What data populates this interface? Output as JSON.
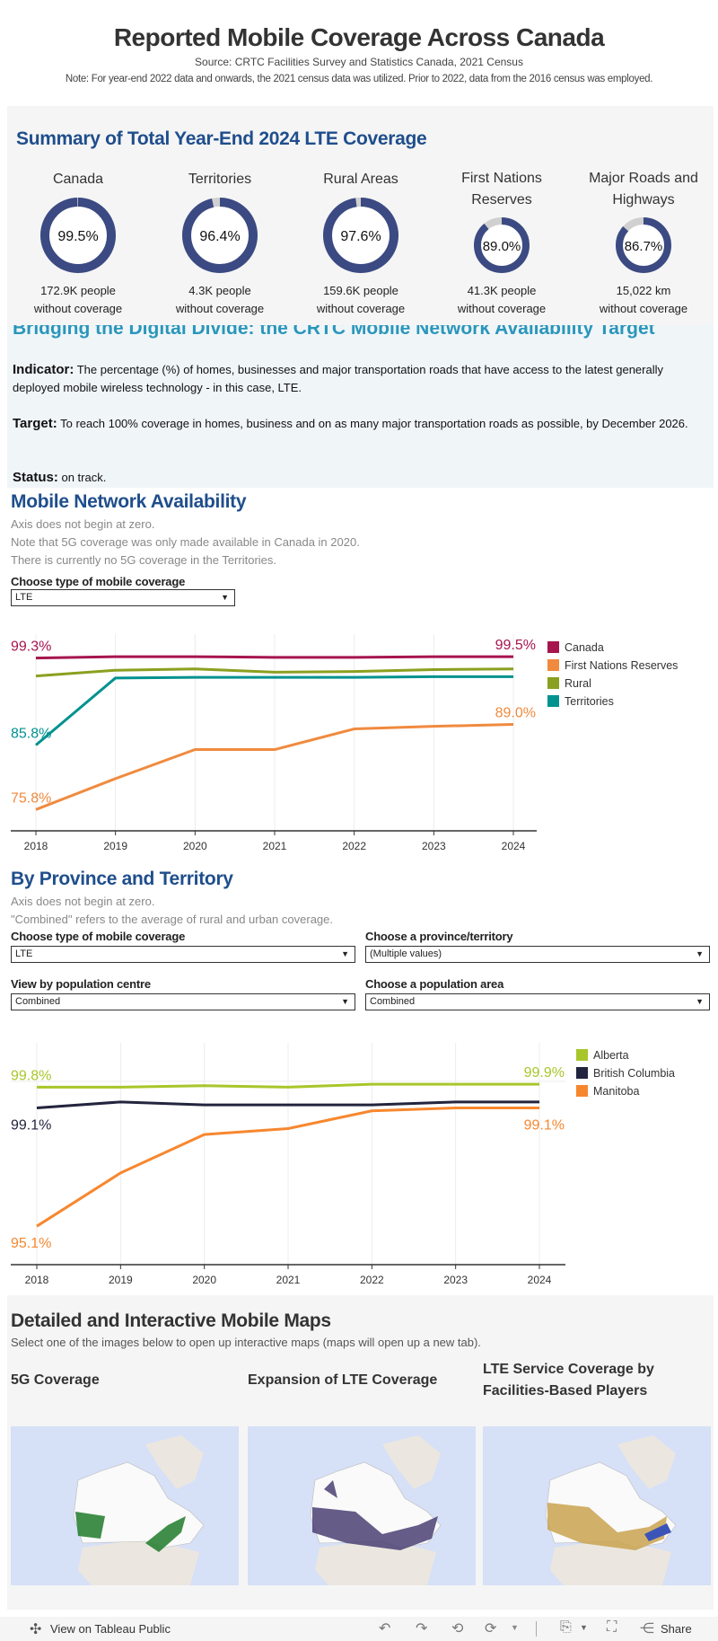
{
  "header": {
    "title": "Reported Mobile Coverage Across Canada",
    "source": "Source: CRTC Facilities Survey and Statistics Canada, 2021 Census",
    "note": "Note: For year-end 2022 data and onwards, the 2021 census data was utilized. Prior to 2022, data from the 2016 census was employed."
  },
  "summary": {
    "heading": "Summary of Total Year-End 2024 LTE Coverage",
    "ring_color": "#3b4a82",
    "remainder_color": "#d0d0d0",
    "kpis": [
      {
        "title": "Canada",
        "value": 99.5,
        "value_label": "99.5%",
        "line1": "172.9K people",
        "line2": "without coverage"
      },
      {
        "title": "Territories",
        "value": 96.4,
        "value_label": "96.4%",
        "line1": "4.3K people",
        "line2": "without coverage"
      },
      {
        "title": "Rural Areas",
        "value": 97.6,
        "value_label": "97.6%",
        "line1": "159.6K people",
        "line2": "without coverage"
      },
      {
        "title": "First Nations Reserves",
        "value": 89.0,
        "value_label": "89.0%",
        "line1": "41.3K people",
        "line2": "without coverage"
      },
      {
        "title": "Major Roads and Highways",
        "value": 86.7,
        "value_label": "86.7%",
        "line1": "15,022 km",
        "line2": "without coverage"
      }
    ]
  },
  "bridge": {
    "heading": "Bridging the Digital Divide: the CRTC Mobile Network Availability Target",
    "indicator_label": "Indicator:",
    "indicator_text": "The percentage (%) of homes, businesses and major transportation roads that have access to the latest generally deployed mobile wireless technology - in this case, LTE.",
    "target_label": "Target:",
    "target_text": "To reach 100% coverage in homes, business and on as many major transportation roads as possible, by December 2026.",
    "status_label": "Status:",
    "status_text": "on track."
  },
  "network": {
    "heading": "Mobile Network Availability",
    "notes": [
      "Axis does not begin at zero.",
      "Note that 5G coverage was only made available in Canada in 2020.",
      "There is currently no 5G coverage in the Territories."
    ],
    "filter_label": "Choose type of mobile coverage",
    "filter_value": "LTE"
  },
  "province": {
    "heading": "By Province and Territory",
    "notes": [
      "Axis does not begin at zero.",
      "\"Combined\" refers to the average of rural and urban coverage."
    ],
    "filters": [
      {
        "label": "Choose type of mobile coverage",
        "value": "LTE"
      },
      {
        "label": "Choose a province/territory",
        "value": "(Multiple values)"
      },
      {
        "label": "View by population centre",
        "value": "Combined"
      },
      {
        "label": "Choose a population area",
        "value": "Combined"
      }
    ]
  },
  "chart_data": [
    {
      "type": "line",
      "categories": [
        "2018",
        "2019",
        "2020",
        "2021",
        "2022",
        "2023",
        "2024"
      ],
      "ylim": [
        72.5,
        103
      ],
      "grid": "vertical",
      "legend": "right",
      "series": [
        {
          "name": "Canada",
          "color": "#a6154e",
          "values": [
            99.3,
            99.5,
            99.5,
            99.4,
            99.4,
            99.5,
            99.5
          ],
          "start_label": {
            "text": "99.3%",
            "side": "above"
          },
          "end_label": {
            "text": "99.5%",
            "side": "above"
          }
        },
        {
          "name": "First Nations Reserves",
          "color": "#f08a3e",
          "values": [
            75.8,
            80.6,
            85.1,
            85.1,
            88.3,
            88.7,
            89.0
          ],
          "start_label": {
            "text": "75.8%",
            "side": "above"
          },
          "end_label": {
            "text": "89.0%",
            "side": "above"
          }
        },
        {
          "name": "Rural",
          "color": "#8aa020",
          "values": [
            96.5,
            97.4,
            97.6,
            97.1,
            97.2,
            97.5,
            97.6
          ]
        },
        {
          "name": "Territories",
          "color": "#00928f",
          "values": [
            85.8,
            96.2,
            96.3,
            96.3,
            96.3,
            96.4,
            96.4
          ],
          "start_label": {
            "text": "85.8%",
            "side": "above"
          }
        }
      ]
    },
    {
      "type": "line",
      "categories": [
        "2018",
        "2019",
        "2020",
        "2021",
        "2022",
        "2023",
        "2024"
      ],
      "ylim": [
        93.8,
        101.3
      ],
      "grid": "vertical",
      "legend": "right",
      "series": [
        {
          "name": "Alberta",
          "color": "#a8c62a",
          "values": [
            99.8,
            99.8,
            99.85,
            99.8,
            99.9,
            99.9,
            99.9
          ],
          "start_label": {
            "text": "99.8%",
            "side": "above"
          },
          "end_label": {
            "text": "99.9%",
            "side": "above"
          }
        },
        {
          "name": "British Columbia",
          "color": "#23253e",
          "values": [
            99.1,
            99.3,
            99.2,
            99.2,
            99.2,
            99.3,
            99.3
          ],
          "start_label": {
            "text": "99.1%",
            "side": "below"
          }
        },
        {
          "name": "Manitoba",
          "color": "#f7872e",
          "values": [
            95.1,
            96.9,
            98.2,
            98.4,
            99.0,
            99.1,
            99.1
          ],
          "start_label": {
            "text": "95.1%",
            "side": "below"
          },
          "end_label": {
            "text": "99.1%",
            "side": "below"
          }
        }
      ]
    }
  ],
  "maps": {
    "heading": "Detailed and Interactive Mobile Maps",
    "subtitle": "Select one of the images below to open up interactive maps (maps will open up a new tab).",
    "items": [
      {
        "title": "5G Coverage",
        "color": "#1f7a2a"
      },
      {
        "title": "Expansion of LTE Coverage",
        "color": "#4a3f73"
      },
      {
        "title": "LTE Service Coverage by Facilities-Based Players",
        "color": "#c9a24f"
      }
    ]
  },
  "footer": {
    "view_label": "View on Tableau Public",
    "share_label": "Share"
  }
}
